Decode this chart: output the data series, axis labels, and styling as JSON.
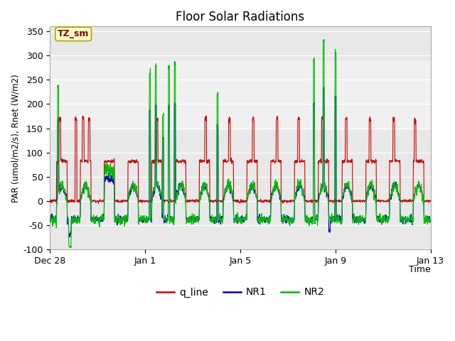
{
  "title": "Floor Solar Radiations",
  "xlabel": "Time",
  "ylabel": "PAR (umol/m2/s), Rnet (W/m2)",
  "ylim": [
    -100,
    360
  ],
  "yticks": [
    -100,
    -50,
    0,
    50,
    100,
    150,
    200,
    250,
    300,
    350
  ],
  "xtick_labels": [
    "Dec 28",
    "Jan 1",
    "Jan 5",
    "Jan 9",
    "Jan 13"
  ],
  "xtick_pos": [
    0,
    4,
    8,
    12,
    16
  ],
  "xlim": [
    0,
    16
  ],
  "bg_inner": "#e8e8e8",
  "bg_band_color": "#f0f0f0",
  "band_ymin": 150,
  "band_ymax": 290,
  "line_colors": {
    "q_line": "#cc0000",
    "NR1": "#0000cc",
    "NR2": "#00bb00"
  },
  "annotation_text": "TZ_sm",
  "figsize": [
    6.4,
    4.8
  ],
  "dpi": 100
}
